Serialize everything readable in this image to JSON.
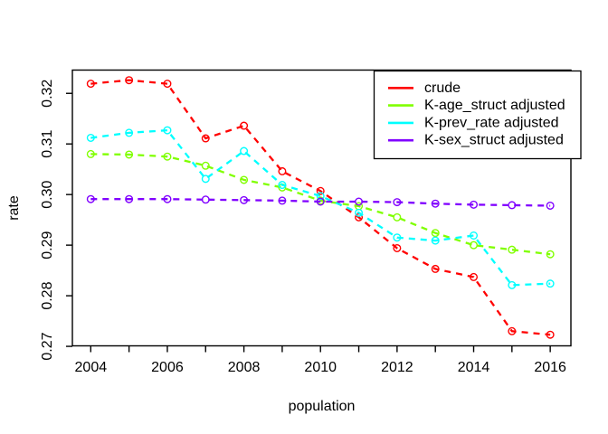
{
  "chart_data": {
    "type": "line",
    "title": "",
    "xlabel": "population",
    "ylabel": "rate",
    "x": [
      2004,
      2005,
      2006,
      2007,
      2008,
      2009,
      2010,
      2011,
      2012,
      2013,
      2014,
      2015,
      2016
    ],
    "series": [
      {
        "name": "crude",
        "color": "#FF0000",
        "values": [
          0.3219,
          0.3226,
          0.3219,
          0.3111,
          0.3136,
          0.3046,
          0.3007,
          0.2955,
          0.2894,
          0.2853,
          0.2837,
          0.273,
          0.2723
        ]
      },
      {
        "name": "K-age_struct adjusted",
        "color": "#80FF00",
        "values": [
          0.308,
          0.3079,
          0.3075,
          0.3057,
          0.3029,
          0.3014,
          0.2988,
          0.2977,
          0.2955,
          0.2924,
          0.29,
          0.2891,
          0.2882
        ]
      },
      {
        "name": "K-prev_rate adjusted",
        "color": "#00FFFF",
        "values": [
          0.3112,
          0.3122,
          0.3127,
          0.3031,
          0.3086,
          0.3019,
          0.2997,
          0.2964,
          0.2915,
          0.2909,
          0.2919,
          0.2821,
          0.2824
        ]
      },
      {
        "name": "K-sex_struct adjusted",
        "color": "#8000FF",
        "values": [
          0.2991,
          0.2991,
          0.2991,
          0.299,
          0.2989,
          0.2988,
          0.2986,
          0.2986,
          0.2985,
          0.2982,
          0.298,
          0.2979,
          0.2978
        ]
      }
    ],
    "x_ticks_labeled": [
      2004,
      2006,
      2008,
      2010,
      2012,
      2014,
      2016
    ],
    "y_ticks": [
      0.27,
      0.28,
      0.29,
      0.3,
      0.31,
      0.32
    ],
    "xlim": [
      2003.52,
      2016.54
    ],
    "ylim": [
      0.2701,
      0.3246
    ],
    "line_style": "dashed",
    "marker": "open-circle",
    "legend_position": "topright",
    "grid": false,
    "background": "#FFFFFF",
    "axis_color": "#000000"
  }
}
